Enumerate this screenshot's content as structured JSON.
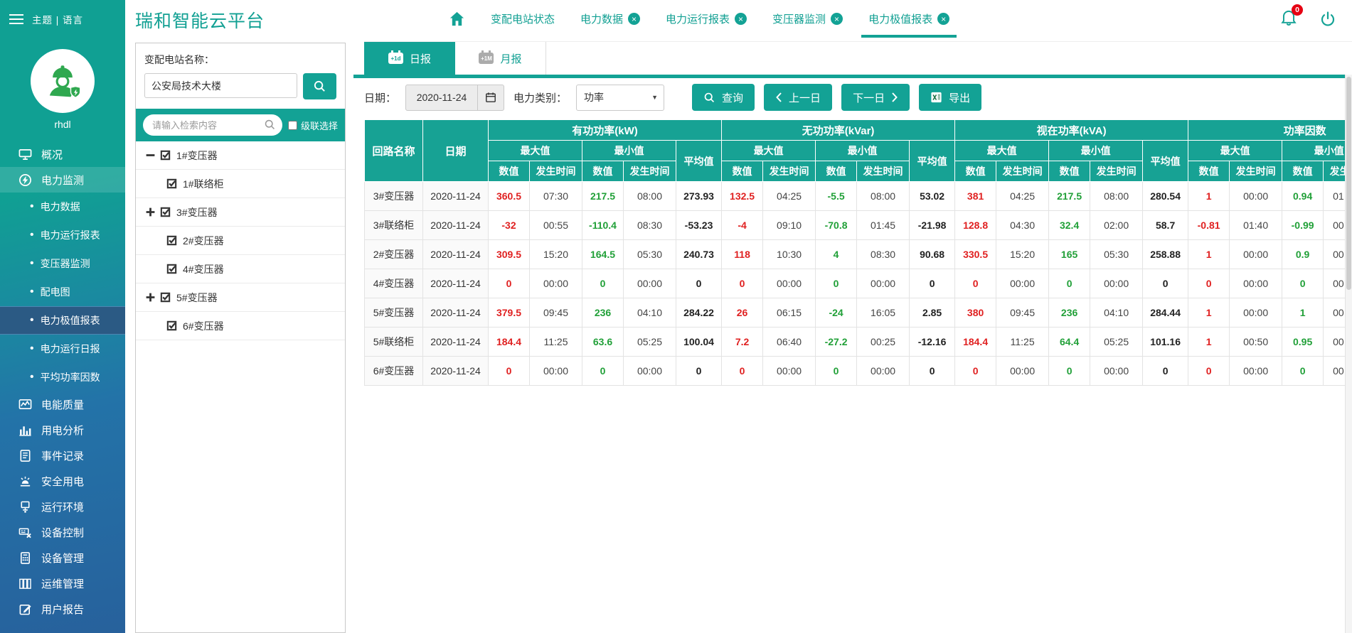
{
  "colors": {
    "primary_teal": "#13A295",
    "sidebar_blue": "#27619C",
    "max_red": "#E02121",
    "min_green": "#21A038",
    "badge_red": "#E60012",
    "excel_green": "#1E7145"
  },
  "sidebar": {
    "theme_lang": "主题 | 语言",
    "username": "rhdl",
    "menu": [
      {
        "id": "overview",
        "label": "概况",
        "icon": "monitor-icon",
        "type": "main",
        "active": false
      },
      {
        "id": "power-monitoring",
        "label": "电力监测",
        "icon": "power-monitoring-icon",
        "type": "main",
        "active": true
      },
      {
        "id": "power-data",
        "label": "电力数据",
        "type": "sub",
        "active": false
      },
      {
        "id": "power-operation-report",
        "label": "电力运行报表",
        "type": "sub",
        "active": false
      },
      {
        "id": "transformer-monitoring",
        "label": "变压器监测",
        "type": "sub",
        "active": false
      },
      {
        "id": "distribution-diagram",
        "label": "配电图",
        "type": "sub",
        "active": false
      },
      {
        "id": "power-extremes-report",
        "label": "电力极值报表",
        "type": "sub",
        "active": true
      },
      {
        "id": "power-daily-report",
        "label": "电力运行日报",
        "type": "sub",
        "active": false
      },
      {
        "id": "avg-power-factor",
        "label": "平均功率因数",
        "type": "sub",
        "active": false
      },
      {
        "id": "power-quality",
        "label": "电能质量",
        "icon": "power-quality-icon",
        "type": "main",
        "active": false
      },
      {
        "id": "electricity-analysis",
        "label": "用电分析",
        "icon": "bar-chart-icon",
        "type": "main",
        "active": false
      },
      {
        "id": "event-records",
        "label": "事件记录",
        "icon": "event-log-icon",
        "type": "main",
        "active": false
      },
      {
        "id": "electrical-safety",
        "label": "安全用电",
        "icon": "alarm-icon",
        "type": "main",
        "active": false
      },
      {
        "id": "operating-environment",
        "label": "运行环境",
        "icon": "environment-icon",
        "type": "main",
        "active": false
      },
      {
        "id": "device-control",
        "label": "设备控制",
        "icon": "device-control-icon",
        "type": "main",
        "active": false
      },
      {
        "id": "device-management",
        "label": "设备管理",
        "icon": "device-management-icon",
        "type": "main",
        "active": false
      },
      {
        "id": "ops-management",
        "label": "运维管理",
        "icon": "ops-management-icon",
        "type": "main",
        "active": false
      },
      {
        "id": "user-report",
        "label": "用户报告",
        "icon": "user-report-icon",
        "type": "main",
        "active": false
      }
    ]
  },
  "header": {
    "title": "瑞和智能云平台",
    "notification_badge": "0",
    "nav": [
      {
        "id": "station-status",
        "label": "变配电站状态",
        "closable": false,
        "active": false
      },
      {
        "id": "power-data",
        "label": "电力数据",
        "closable": true,
        "active": false
      },
      {
        "id": "power-operation-report",
        "label": "电力运行报表",
        "closable": true,
        "active": false
      },
      {
        "id": "transformer-monitoring",
        "label": "变压器监测",
        "closable": true,
        "active": false
      },
      {
        "id": "power-extremes-report",
        "label": "电力极值报表",
        "closable": true,
        "active": true
      }
    ]
  },
  "tree": {
    "station_label": "变配电站名称：",
    "station_value": "公安局技术大楼",
    "search_placeholder": "请输入检索内容",
    "cascade_label": "级联选择",
    "nodes": [
      {
        "id": "transformer-1",
        "label": "1#变压器",
        "expander": "minus",
        "indent": 0,
        "checked": true
      },
      {
        "id": "tie-cabinet-1",
        "label": "1#联络柜",
        "expander": "none",
        "indent": 1,
        "checked": true
      },
      {
        "id": "transformer-3",
        "label": "3#变压器",
        "expander": "plus",
        "indent": 0,
        "checked": true
      },
      {
        "id": "transformer-2",
        "label": "2#变压器",
        "expander": "none",
        "indent": 1,
        "checked": true
      },
      {
        "id": "transformer-4",
        "label": "4#变压器",
        "expander": "none",
        "indent": 1,
        "checked": true
      },
      {
        "id": "transformer-5",
        "label": "5#变压器",
        "expander": "plus",
        "indent": 0,
        "checked": true
      },
      {
        "id": "transformer-6",
        "label": "6#变压器",
        "expander": "none",
        "indent": 1,
        "checked": true
      }
    ]
  },
  "content": {
    "tabs": [
      {
        "id": "daily",
        "label": "日报",
        "icon_label": "+1d",
        "active": true
      },
      {
        "id": "monthly",
        "label": "月报",
        "icon_label": "+1M",
        "active": false
      }
    ],
    "toolbar": {
      "date_label": "日期：",
      "date_value": "2020-11-24",
      "category_label": "电力类别：",
      "category_value": "功率",
      "search_label": "查询",
      "prev_label": "上一日",
      "next_label": "下一日",
      "export_label": "导出"
    }
  },
  "table": {
    "headers": {
      "circuit": "回路名称",
      "date": "日期",
      "groups": [
        "有功功率(kW)",
        "无功功率(kVar)",
        "视在功率(kVA)",
        "功率因数"
      ],
      "max": "最大值",
      "min": "最小值",
      "avg": "平均值",
      "value": "数值",
      "time": "发生时间"
    },
    "rows": [
      {
        "circuit": "3#变压器",
        "date": "2020-11-24",
        "groups": [
          {
            "max_v": "360.5",
            "max_t": "07:30",
            "min_v": "217.5",
            "min_t": "08:00",
            "avg": "273.93"
          },
          {
            "max_v": "132.5",
            "max_t": "04:25",
            "min_v": "-5.5",
            "min_t": "08:00",
            "avg": "53.02"
          },
          {
            "max_v": "381",
            "max_t": "04:25",
            "min_v": "217.5",
            "min_t": "08:00",
            "avg": "280.54"
          },
          {
            "max_v": "1",
            "max_t": "00:00",
            "min_v": "0.94",
            "min_t": "01",
            "avg": ""
          }
        ]
      },
      {
        "circuit": "3#联络柜",
        "date": "2020-11-24",
        "groups": [
          {
            "max_v": "-32",
            "max_t": "00:55",
            "min_v": "-110.4",
            "min_t": "08:30",
            "avg": "-53.23"
          },
          {
            "max_v": "-4",
            "max_t": "09:10",
            "min_v": "-70.8",
            "min_t": "01:45",
            "avg": "-21.98"
          },
          {
            "max_v": "128.8",
            "max_t": "04:30",
            "min_v": "32.4",
            "min_t": "02:00",
            "avg": "58.7"
          },
          {
            "max_v": "-0.81",
            "max_t": "01:40",
            "min_v": "-0.99",
            "min_t": "00",
            "avg": ""
          }
        ]
      },
      {
        "circuit": "2#变压器",
        "date": "2020-11-24",
        "groups": [
          {
            "max_v": "309.5",
            "max_t": "15:20",
            "min_v": "164.5",
            "min_t": "05:30",
            "avg": "240.73"
          },
          {
            "max_v": "118",
            "max_t": "10:30",
            "min_v": "4",
            "min_t": "08:30",
            "avg": "90.68"
          },
          {
            "max_v": "330.5",
            "max_t": "15:20",
            "min_v": "165",
            "min_t": "05:30",
            "avg": "258.88"
          },
          {
            "max_v": "1",
            "max_t": "00:00",
            "min_v": "0.9",
            "min_t": "00",
            "avg": ""
          }
        ]
      },
      {
        "circuit": "4#变压器",
        "date": "2020-11-24",
        "groups": [
          {
            "max_v": "0",
            "max_t": "00:00",
            "min_v": "0",
            "min_t": "00:00",
            "avg": "0"
          },
          {
            "max_v": "0",
            "max_t": "00:00",
            "min_v": "0",
            "min_t": "00:00",
            "avg": "0"
          },
          {
            "max_v": "0",
            "max_t": "00:00",
            "min_v": "0",
            "min_t": "00:00",
            "avg": "0"
          },
          {
            "max_v": "0",
            "max_t": "00:00",
            "min_v": "0",
            "min_t": "00",
            "avg": ""
          }
        ]
      },
      {
        "circuit": "5#变压器",
        "date": "2020-11-24",
        "groups": [
          {
            "max_v": "379.5",
            "max_t": "09:45",
            "min_v": "236",
            "min_t": "04:10",
            "avg": "284.22"
          },
          {
            "max_v": "26",
            "max_t": "06:15",
            "min_v": "-24",
            "min_t": "16:05",
            "avg": "2.85"
          },
          {
            "max_v": "380",
            "max_t": "09:45",
            "min_v": "236",
            "min_t": "04:10",
            "avg": "284.44"
          },
          {
            "max_v": "1",
            "max_t": "00:00",
            "min_v": "1",
            "min_t": "00",
            "avg": ""
          }
        ]
      },
      {
        "circuit": "5#联络柜",
        "date": "2020-11-24",
        "groups": [
          {
            "max_v": "184.4",
            "max_t": "11:25",
            "min_v": "63.6",
            "min_t": "05:25",
            "avg": "100.04"
          },
          {
            "max_v": "7.2",
            "max_t": "06:40",
            "min_v": "-27.2",
            "min_t": "00:25",
            "avg": "-12.16"
          },
          {
            "max_v": "184.4",
            "max_t": "11:25",
            "min_v": "64.4",
            "min_t": "05:25",
            "avg": "101.16"
          },
          {
            "max_v": "1",
            "max_t": "00:50",
            "min_v": "0.95",
            "min_t": "00",
            "avg": ""
          }
        ]
      },
      {
        "circuit": "6#变压器",
        "date": "2020-11-24",
        "groups": [
          {
            "max_v": "0",
            "max_t": "00:00",
            "min_v": "0",
            "min_t": "00:00",
            "avg": "0"
          },
          {
            "max_v": "0",
            "max_t": "00:00",
            "min_v": "0",
            "min_t": "00:00",
            "avg": "0"
          },
          {
            "max_v": "0",
            "max_t": "00:00",
            "min_v": "0",
            "min_t": "00:00",
            "avg": "0"
          },
          {
            "max_v": "0",
            "max_t": "00:00",
            "min_v": "0",
            "min_t": "00",
            "avg": ""
          }
        ]
      }
    ]
  }
}
